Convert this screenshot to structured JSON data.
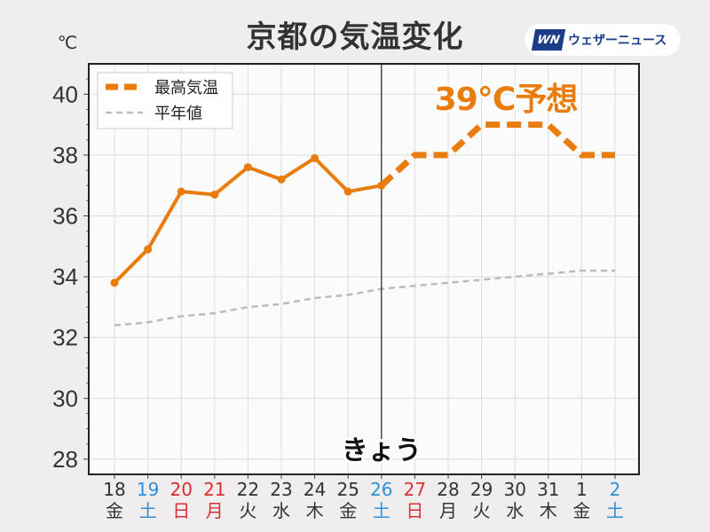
{
  "title": "京都の気温変化",
  "logo": {
    "mark": "WN",
    "text": "ウェザーニュース"
  },
  "colors": {
    "max": "#e87d0e",
    "normal": "#bbbbbb",
    "saturday": "#2f8fd8",
    "sunday": "#d83030",
    "weekday": "#333333"
  },
  "chart_data": {
    "type": "line",
    "title": "京都の気温変化",
    "ylabel": "℃",
    "ylim": [
      27.5,
      41
    ],
    "yticks": [
      28,
      30,
      32,
      34,
      36,
      38,
      40
    ],
    "categories": [
      {
        "day": "18",
        "dow": "金",
        "type": "weekday"
      },
      {
        "day": "19",
        "dow": "土",
        "type": "saturday"
      },
      {
        "day": "20",
        "dow": "日",
        "type": "sunday"
      },
      {
        "day": "21",
        "dow": "月",
        "type": "sunday"
      },
      {
        "day": "22",
        "dow": "火",
        "type": "weekday"
      },
      {
        "day": "23",
        "dow": "水",
        "type": "weekday"
      },
      {
        "day": "24",
        "dow": "木",
        "type": "weekday"
      },
      {
        "day": "25",
        "dow": "金",
        "type": "weekday"
      },
      {
        "day": "26",
        "dow": "土",
        "type": "saturday"
      },
      {
        "day": "27",
        "dow": "日",
        "type": "sunday"
      },
      {
        "day": "28",
        "dow": "月",
        "type": "weekday"
      },
      {
        "day": "29",
        "dow": "火",
        "type": "weekday"
      },
      {
        "day": "30",
        "dow": "水",
        "type": "weekday"
      },
      {
        "day": "31",
        "dow": "木",
        "type": "weekday"
      },
      {
        "day": "1",
        "dow": "金",
        "type": "weekday"
      },
      {
        "day": "2",
        "dow": "土",
        "type": "saturday"
      }
    ],
    "series": [
      {
        "name": "最高気温",
        "observed": [
          33.8,
          34.9,
          36.8,
          36.7,
          37.6,
          37.2,
          37.9,
          36.8,
          37.0
        ],
        "forecast": [
          37.0,
          38.0,
          38.0,
          39.0,
          39.0,
          39.0,
          38.0,
          38.0
        ]
      },
      {
        "name": "平年値",
        "values": [
          32.4,
          32.5,
          32.7,
          32.8,
          33.0,
          33.1,
          33.3,
          33.4,
          33.6,
          33.7,
          33.8,
          33.9,
          34.0,
          34.1,
          34.2,
          34.2
        ]
      }
    ],
    "today_index": 8,
    "today_label": "きょう",
    "annotation": "39℃予想",
    "legend_position": "top-left",
    "grid": true
  }
}
